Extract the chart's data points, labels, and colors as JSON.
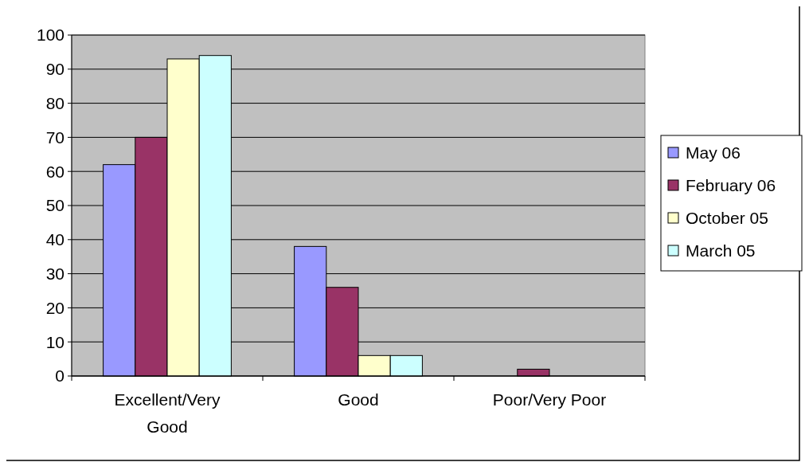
{
  "chart_data": {
    "type": "bar",
    "categories": [
      "Excellent/Very Good",
      "Good",
      "Poor/Very Poor"
    ],
    "series": [
      {
        "name": "May 06",
        "color": "#9999ff",
        "values": [
          62,
          38,
          0
        ]
      },
      {
        "name": "February 06",
        "color": "#993366",
        "values": [
          70,
          26,
          2
        ]
      },
      {
        "name": "October 05",
        "color": "#ffffcc",
        "values": [
          93,
          6,
          0
        ]
      },
      {
        "name": "March 05",
        "color": "#ccffff",
        "values": [
          94,
          6,
          0
        ]
      }
    ],
    "ylim": [
      0,
      100
    ],
    "yticks": [
      0,
      10,
      20,
      30,
      40,
      50,
      60,
      70,
      80,
      90,
      100
    ],
    "grid": "y",
    "legend": "right"
  }
}
